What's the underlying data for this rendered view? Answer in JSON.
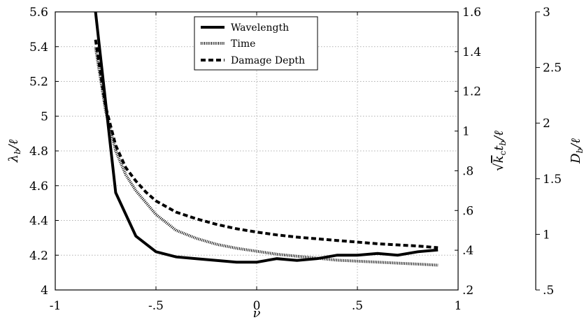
{
  "chart_data": {
    "type": "line",
    "xlabel": "ν",
    "ylabel_left": "λb/ℓ",
    "ylabel_right1": "√kc tb/ℓ",
    "ylabel_right2": "Db/ℓ",
    "xlim": [
      -1,
      1
    ],
    "ylim_left": [
      4,
      5.6
    ],
    "ylim_right1": [
      0.2,
      1.6
    ],
    "ylim_right2": [
      0.5,
      3
    ],
    "x_ticks": [
      -1,
      -0.5,
      0,
      0.5,
      1
    ],
    "x_tick_labels": [
      "-1",
      "-.5",
      "0",
      ".5",
      "1"
    ],
    "left_ticks": [
      4,
      4.2,
      4.4,
      4.6,
      4.8,
      5,
      5.2,
      5.4,
      5.6
    ],
    "left_tick_labels": [
      "4",
      "4.2",
      "4.4",
      "4.6",
      "4.8",
      "5",
      "5.2",
      "5.4",
      "5.6"
    ],
    "right1_ticks": [
      0.2,
      0.4,
      0.6,
      0.8,
      1.0,
      1.2,
      1.4,
      1.6
    ],
    "right1_tick_labels": [
      ".2",
      ".4",
      ".6",
      ".8",
      "1",
      "1.2",
      "1.4",
      "1.6"
    ],
    "right2_ticks": [
      0.5,
      1,
      1.5,
      2,
      2.5,
      3
    ],
    "right2_tick_labels": [
      ".5",
      "1",
      "1.5",
      "2",
      "2.5",
      "3"
    ],
    "grid": true,
    "legend_position": "top-center",
    "series": [
      {
        "name": "Wavelength",
        "axis": "left",
        "style": "solid",
        "x": [
          -0.8,
          -0.7,
          -0.6,
          -0.5,
          -0.4,
          -0.3,
          -0.2,
          -0.1,
          0,
          0.1,
          0.2,
          0.3,
          0.4,
          0.5,
          0.6,
          0.7,
          0.8,
          0.9
        ],
        "y": [
          5.6,
          4.56,
          4.31,
          4.22,
          4.19,
          4.18,
          4.17,
          4.16,
          4.16,
          4.18,
          4.17,
          4.18,
          4.2,
          4.2,
          4.21,
          4.2,
          4.22,
          4.23
        ]
      },
      {
        "name": "Time",
        "axis": "right1",
        "style": "dotted",
        "x": [
          -0.8,
          -0.75,
          -0.7,
          -0.65,
          -0.6,
          -0.55,
          -0.5,
          -0.45,
          -0.4,
          -0.3,
          -0.2,
          -0.1,
          0,
          0.1,
          0.2,
          0.3,
          0.4,
          0.5,
          0.6,
          0.7,
          0.8,
          0.9
        ],
        "y": [
          1.42,
          1.1,
          0.9,
          0.78,
          0.7,
          0.64,
          0.58,
          0.54,
          0.5,
          0.46,
          0.43,
          0.41,
          0.395,
          0.38,
          0.37,
          0.36,
          0.35,
          0.345,
          0.34,
          0.335,
          0.33,
          0.325
        ]
      },
      {
        "name": "Damage Depth",
        "axis": "right2",
        "style": "dashed",
        "x": [
          -0.8,
          -0.75,
          -0.7,
          -0.65,
          -0.6,
          -0.55,
          -0.5,
          -0.45,
          -0.4,
          -0.3,
          -0.2,
          -0.1,
          0,
          0.1,
          0.2,
          0.3,
          0.4,
          0.5,
          0.6,
          0.7,
          0.8,
          0.9
        ],
        "y": [
          2.75,
          2.15,
          1.8,
          1.6,
          1.48,
          1.38,
          1.3,
          1.25,
          1.2,
          1.14,
          1.09,
          1.05,
          1.02,
          0.995,
          0.975,
          0.96,
          0.945,
          0.93,
          0.915,
          0.905,
          0.895,
          0.88
        ]
      }
    ]
  }
}
